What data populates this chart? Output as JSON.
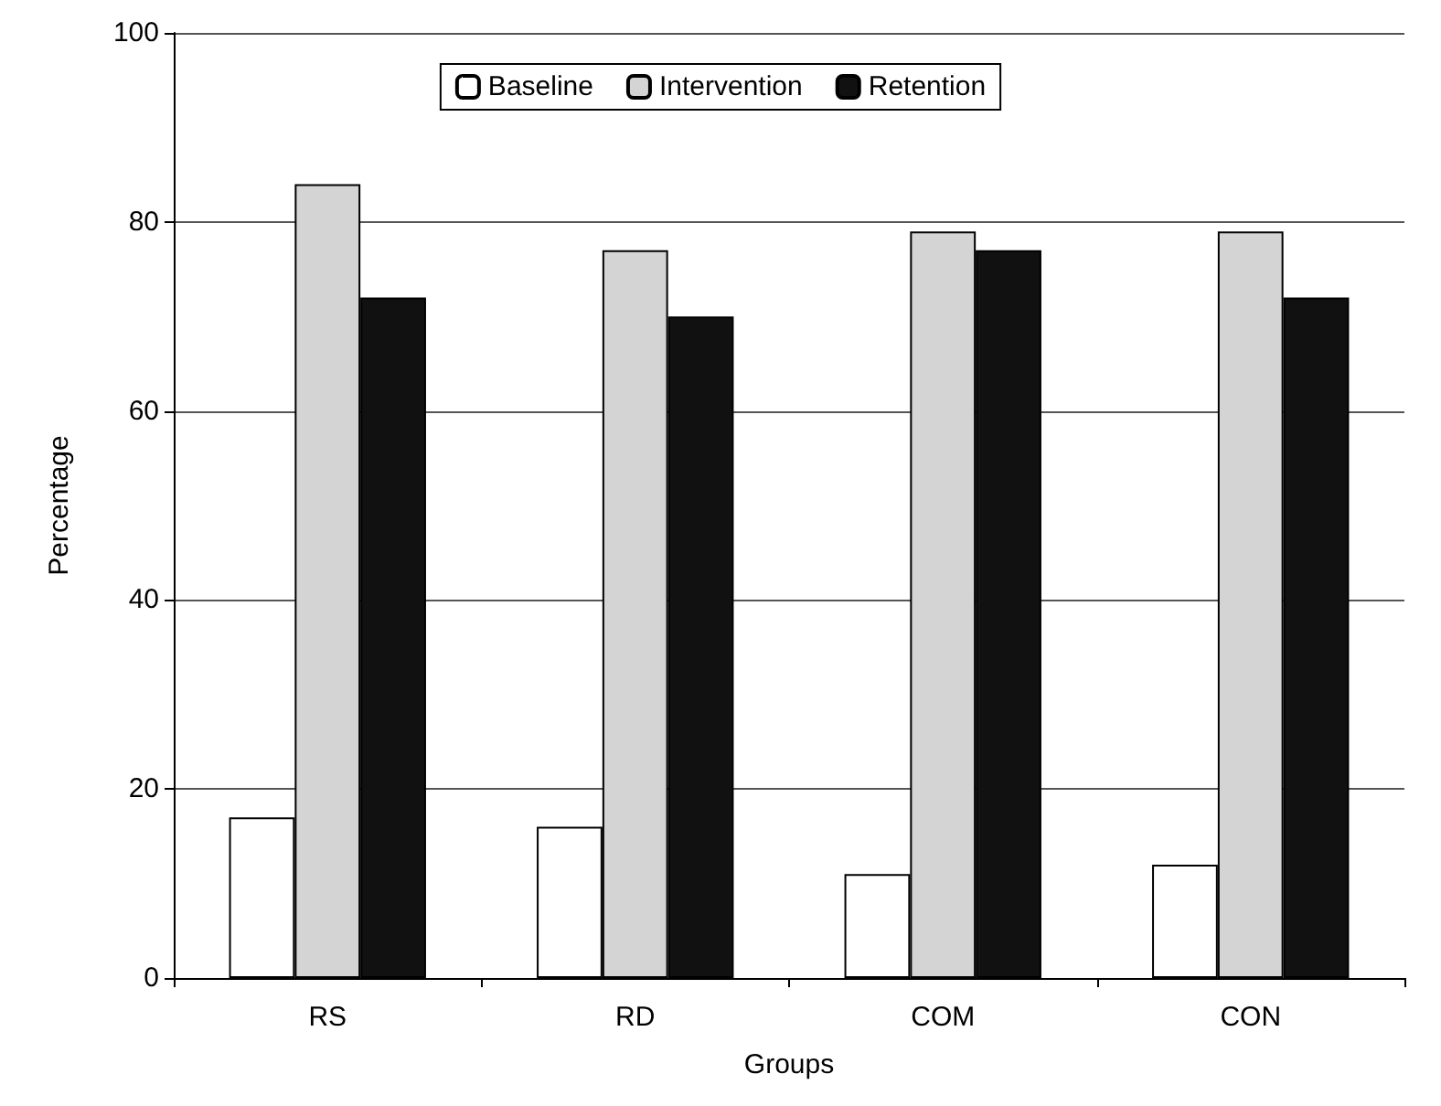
{
  "chart_data": {
    "type": "bar",
    "xlabel": "Groups",
    "ylabel": "Percentage",
    "categories": [
      "RS",
      "RD",
      "COM",
      "CON"
    ],
    "series": [
      {
        "name": "Baseline",
        "color": "#ffffff",
        "values": [
          17,
          16,
          11,
          12
        ]
      },
      {
        "name": "Intervention",
        "color": "#d4d4d4",
        "values": [
          84,
          77,
          79,
          79
        ]
      },
      {
        "name": "Retention",
        "color": "#111111",
        "values": [
          72,
          70,
          77,
          72
        ]
      }
    ],
    "ylim": [
      0,
      100
    ],
    "yticks": [
      0,
      20,
      40,
      60,
      80,
      100
    ],
    "grid": "y",
    "legend": "top"
  }
}
